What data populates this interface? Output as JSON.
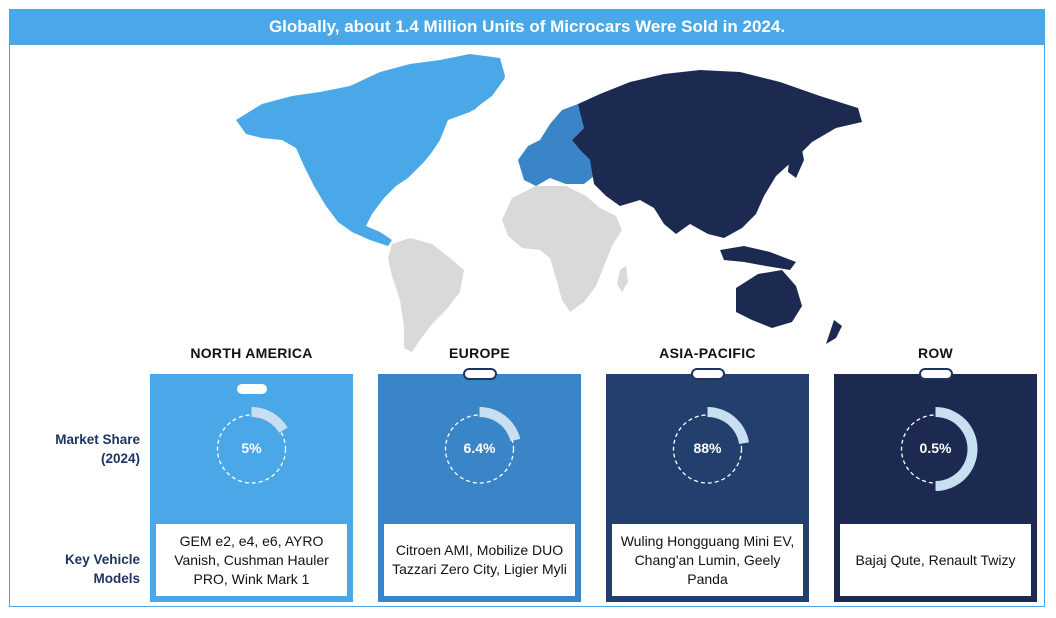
{
  "title": "Globally, about 1.4 Million Units of Microcars Were Sold in 2024.",
  "row_labels": {
    "market_share": "Market Share (2024)",
    "key_models": "Key Vehicle Models"
  },
  "colors": {
    "north_america": "#4aa8e8",
    "europe": "#3a85c7",
    "asia_pacific": "#223f6e",
    "row": "#1c2a52",
    "rest_of_world_map": "#d9d9d9",
    "arc": "#c8dff2"
  },
  "chart_data": {
    "type": "pie",
    "categories": [
      "NORTH AMERICA",
      "EUROPE",
      "ASIA-PACIFIC",
      "ROW"
    ],
    "values": [
      5,
      6.4,
      88,
      0.5
    ],
    "value_labels": [
      "5%",
      "6.4%",
      "88%",
      "0.5%"
    ],
    "title": "Globally, about 1.4 Million Units of Microcars Were Sold in 2024."
  },
  "regions": [
    {
      "name": "NORTH AMERICA",
      "share": "5%",
      "models": "GEM e2, e4, e6, AYRO Vanish, Cushman Hauler PRO, Wink Mark 1"
    },
    {
      "name": "EUROPE",
      "share": "6.4%",
      "models": "Citroen AMI, Mobilize DUO Tazzari Zero City, Ligier Myli"
    },
    {
      "name": "ASIA-PACIFIC",
      "share": "88%",
      "models": "Wuling Hongguang Mini EV, Chang'an Lumin, Geely Panda"
    },
    {
      "name": "ROW",
      "share": "0.5%",
      "models": "Bajaj Qute, Renault Twizy"
    }
  ]
}
